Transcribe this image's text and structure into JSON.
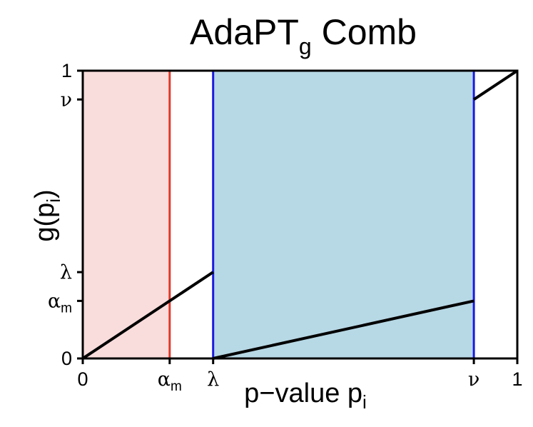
{
  "chart_data": {
    "type": "line",
    "title": {
      "main": "AdaPT",
      "sub": "g",
      "rest": " Comb"
    },
    "xlabel": {
      "main": "p−value p",
      "sub": "i"
    },
    "ylabel": {
      "pre": "g(p",
      "sub": "i",
      "post": ")"
    },
    "xlim": [
      0,
      1
    ],
    "ylim": [
      0,
      1
    ],
    "params": {
      "alpha_m": 0.2,
      "lambda": 0.3,
      "nu": 0.9
    },
    "x_ticks": [
      {
        "value": 0,
        "label": "0"
      },
      {
        "value": 0.2,
        "label": "α",
        "sub": "m"
      },
      {
        "value": 0.3,
        "label": "λ"
      },
      {
        "value": 0.9,
        "label": "ν"
      },
      {
        "value": 1,
        "label": "1"
      }
    ],
    "y_ticks": [
      {
        "value": 0,
        "label": "0"
      },
      {
        "value": 0.2,
        "label": "α",
        "sub": "m"
      },
      {
        "value": 0.3,
        "label": "λ"
      },
      {
        "value": 0.9,
        "label": "ν"
      },
      {
        "value": 1,
        "label": "1"
      }
    ],
    "regions": [
      {
        "name": "rejection-region",
        "x": [
          0,
          0.2
        ],
        "color": "#f9dcdc"
      },
      {
        "name": "mask-region",
        "x": [
          0.3,
          0.9
        ],
        "color": "#b7d8e5"
      }
    ],
    "vlines": [
      {
        "name": "alpha-line",
        "x": 0.2,
        "color": "#e0382a"
      },
      {
        "name": "lambda-line",
        "x": 0.3,
        "color": "#1a1ae0"
      },
      {
        "name": "nu-line",
        "x": 0.9,
        "color": "#1a1ae0"
      }
    ],
    "series": [
      {
        "segments": [
          {
            "x": [
              0,
              0.3
            ],
            "y": [
              0,
              0.3
            ]
          },
          {
            "x": [
              0.3,
              0.9
            ],
            "y": [
              0,
              0.2
            ]
          },
          {
            "x": [
              0.9,
              1
            ],
            "y": [
              0.9,
              1
            ]
          }
        ]
      }
    ],
    "line_color": "#000000",
    "grid": false,
    "legend": "none"
  }
}
